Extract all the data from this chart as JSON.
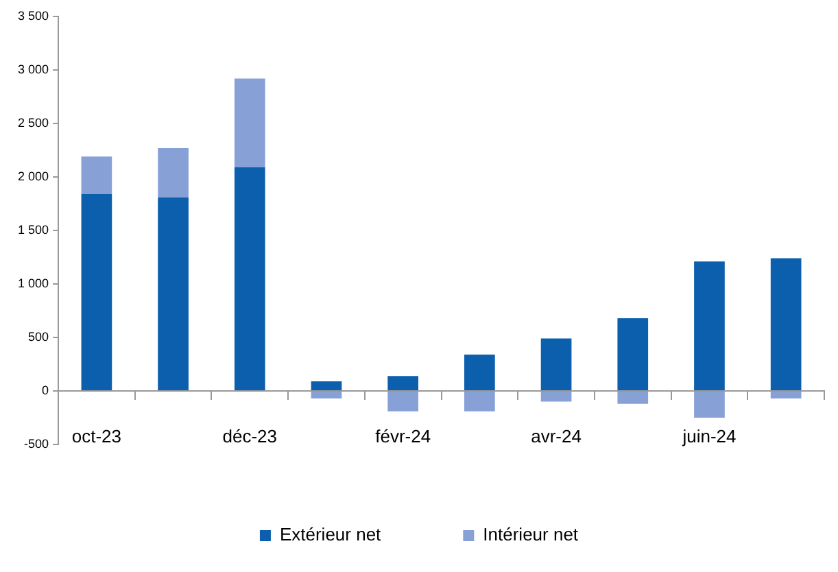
{
  "chart_data": {
    "type": "bar",
    "stacked": true,
    "categories": [
      "oct-23",
      null,
      "déc-23",
      null,
      "févr-24",
      null,
      "avr-24",
      null,
      "juin-24",
      null
    ],
    "series": [
      {
        "name": "Extérieur net",
        "color": "#0b5fad",
        "values": [
          1840,
          1810,
          2090,
          90,
          140,
          340,
          490,
          680,
          1210,
          1240
        ]
      },
      {
        "name": "Intérieur net",
        "color": "#87a0d6",
        "values": [
          350,
          460,
          830,
          -70,
          -190,
          -190,
          -100,
          -120,
          -250,
          -70
        ]
      }
    ],
    "ylim": [
      -500,
      3500
    ],
    "yticks": [
      {
        "value": -500,
        "label": "-500"
      },
      {
        "value": 0,
        "label": "0"
      },
      {
        "value": 500,
        "label": "500"
      },
      {
        "value": 1000,
        "label": "1 000"
      },
      {
        "value": 1500,
        "label": "1 500"
      },
      {
        "value": 2000,
        "label": "2 000"
      },
      {
        "value": 2500,
        "label": "2 500"
      },
      {
        "value": 3000,
        "label": "3 000"
      },
      {
        "value": 3500,
        "label": "3 500"
      }
    ],
    "grid": false,
    "legend": "bottom"
  }
}
